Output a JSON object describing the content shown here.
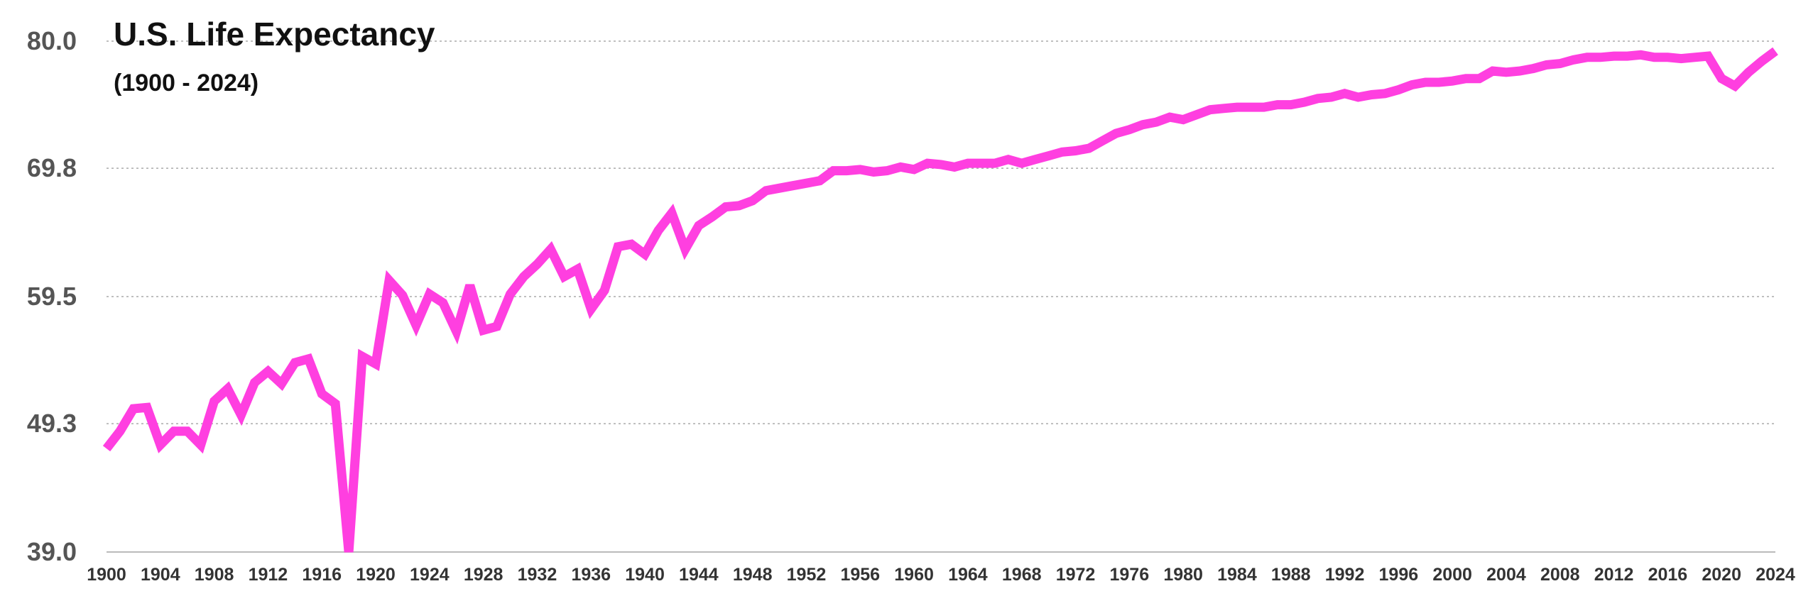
{
  "chart_data": {
    "type": "line",
    "title": "U.S. Life Expectancy",
    "subtitle": "(1900 - 2024)",
    "xlabel": "",
    "ylabel": "",
    "xlim": [
      1900,
      2024
    ],
    "ylim": [
      39.0,
      80.0
    ],
    "y_ticks": [
      "39.0",
      "49.3",
      "59.5",
      "69.8",
      "80.0"
    ],
    "x_ticks": [
      "1900",
      "1904",
      "1908",
      "1912",
      "1916",
      "1920",
      "1924",
      "1928",
      "1932",
      "1936",
      "1940",
      "1944",
      "1948",
      "1952",
      "1956",
      "1960",
      "1964",
      "1968",
      "1972",
      "1976",
      "1980",
      "1984",
      "1988",
      "1992",
      "1996",
      "2000",
      "2004",
      "2008",
      "2012",
      "2016",
      "2020",
      "2024"
    ],
    "grid": "horizontal-dotted",
    "legend": "none",
    "line_color": "#ff3fe0",
    "series": [
      {
        "x": [
          1900,
          1901,
          1902,
          1903,
          1904,
          1905,
          1906,
          1907,
          1908,
          1909,
          1910,
          1911,
          1912,
          1913,
          1914,
          1915,
          1916,
          1917,
          1918,
          1919,
          1920,
          1921,
          1922,
          1923,
          1924,
          1925,
          1926,
          1927,
          1928,
          1929,
          1930,
          1931,
          1932,
          1933,
          1934,
          1935,
          1936,
          1937,
          1938,
          1939,
          1940,
          1941,
          1942,
          1943,
          1944,
          1945,
          1946,
          1947,
          1948,
          1949,
          1950,
          1951,
          1952,
          1953,
          1954,
          1955,
          1956,
          1957,
          1958,
          1959,
          1960,
          1961,
          1962,
          1963,
          1964,
          1965,
          1966,
          1967,
          1968,
          1969,
          1970,
          1971,
          1972,
          1973,
          1974,
          1975,
          1976,
          1977,
          1978,
          1979,
          1980,
          1981,
          1982,
          1983,
          1984,
          1985,
          1986,
          1987,
          1988,
          1989,
          1990,
          1991,
          1992,
          1993,
          1994,
          1995,
          1996,
          1997,
          1998,
          1999,
          2000,
          2001,
          2002,
          2003,
          2004,
          2005,
          2006,
          2007,
          2008,
          2009,
          2010,
          2011,
          2012,
          2013,
          2014,
          2015,
          2016,
          2017,
          2018,
          2019,
          2020,
          2021,
          2022,
          2023,
          2024
        ],
        "values": [
          47.3,
          48.7,
          50.5,
          50.6,
          47.6,
          48.7,
          48.7,
          47.6,
          51.1,
          52.1,
          50.0,
          52.6,
          53.5,
          52.5,
          54.2,
          54.5,
          51.7,
          50.9,
          39.0,
          54.7,
          54.1,
          60.8,
          59.6,
          57.2,
          59.7,
          59.0,
          56.7,
          60.4,
          56.8,
          57.1,
          59.7,
          61.1,
          62.1,
          63.3,
          61.1,
          61.7,
          58.5,
          60.0,
          63.5,
          63.7,
          62.9,
          64.8,
          66.2,
          63.3,
          65.2,
          65.9,
          66.7,
          66.8,
          67.2,
          68.0,
          68.2,
          68.4,
          68.6,
          68.8,
          69.6,
          69.6,
          69.7,
          69.5,
          69.6,
          69.9,
          69.7,
          70.2,
          70.1,
          69.9,
          70.2,
          70.2,
          70.2,
          70.5,
          70.2,
          70.5,
          70.8,
          71.1,
          71.2,
          71.4,
          72.0,
          72.6,
          72.9,
          73.3,
          73.5,
          73.9,
          73.7,
          74.1,
          74.5,
          74.6,
          74.7,
          74.7,
          74.7,
          74.9,
          74.9,
          75.1,
          75.4,
          75.5,
          75.8,
          75.5,
          75.7,
          75.8,
          76.1,
          76.5,
          76.7,
          76.7,
          76.8,
          77.0,
          77.0,
          77.6,
          77.5,
          77.6,
          77.8,
          78.1,
          78.2,
          78.5,
          78.7,
          78.7,
          78.8,
          78.8,
          78.9,
          78.7,
          78.7,
          78.6,
          78.7,
          78.8,
          77.0,
          76.4,
          77.5,
          78.4,
          79.2
        ]
      }
    ]
  }
}
